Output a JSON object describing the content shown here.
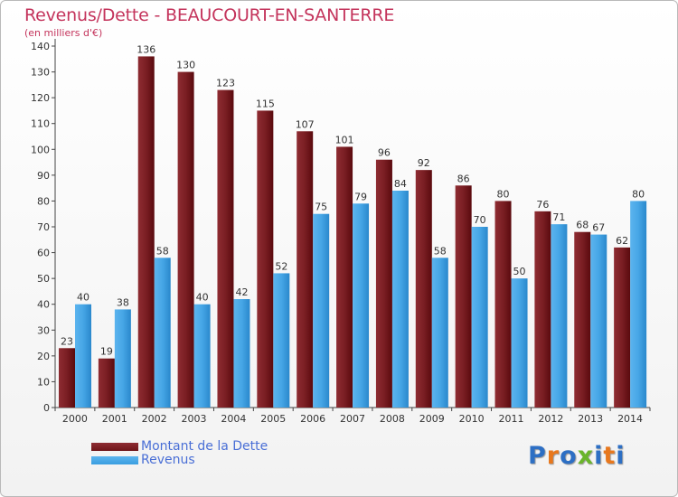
{
  "title": "Revenus/Dette - BEAUCOURT-EN-SANTERRE",
  "subtitle": "(en milliers d'€)",
  "logo": {
    "text": "Proxiti",
    "letters": [
      "P",
      "r",
      "o",
      "x",
      "i",
      "t",
      "i"
    ],
    "colors": [
      "#2d6fc4",
      "#e8781d",
      "#2d6fc4",
      "#6ab52b",
      "#2d6fc4",
      "#e8781d",
      "#2d6fc4"
    ]
  },
  "colors": {
    "dette": "#6e1418",
    "revenus": "#3a9ee0",
    "title": "#c4345c",
    "legend_text": "#4a6fd6"
  },
  "chart_data": {
    "type": "bar",
    "categories": [
      "2000",
      "2001",
      "2002",
      "2003",
      "2004",
      "2005",
      "2006",
      "2007",
      "2008",
      "2009",
      "2010",
      "2011",
      "2012",
      "2013",
      "2014"
    ],
    "series": [
      {
        "name": "Montant de la Dette",
        "values": [
          23,
          19,
          136,
          130,
          123,
          115,
          107,
          101,
          96,
          92,
          86,
          80,
          76,
          68,
          62
        ]
      },
      {
        "name": "Revenus",
        "values": [
          40,
          38,
          58,
          40,
          42,
          52,
          75,
          79,
          84,
          58,
          70,
          50,
          71,
          67,
          80
        ]
      }
    ],
    "yticks": [
      0,
      10,
      20,
      30,
      40,
      50,
      60,
      70,
      80,
      90,
      100,
      110,
      120,
      130,
      140
    ],
    "ylim": [
      0,
      140
    ],
    "grid": false,
    "legend": "bottom-left"
  }
}
